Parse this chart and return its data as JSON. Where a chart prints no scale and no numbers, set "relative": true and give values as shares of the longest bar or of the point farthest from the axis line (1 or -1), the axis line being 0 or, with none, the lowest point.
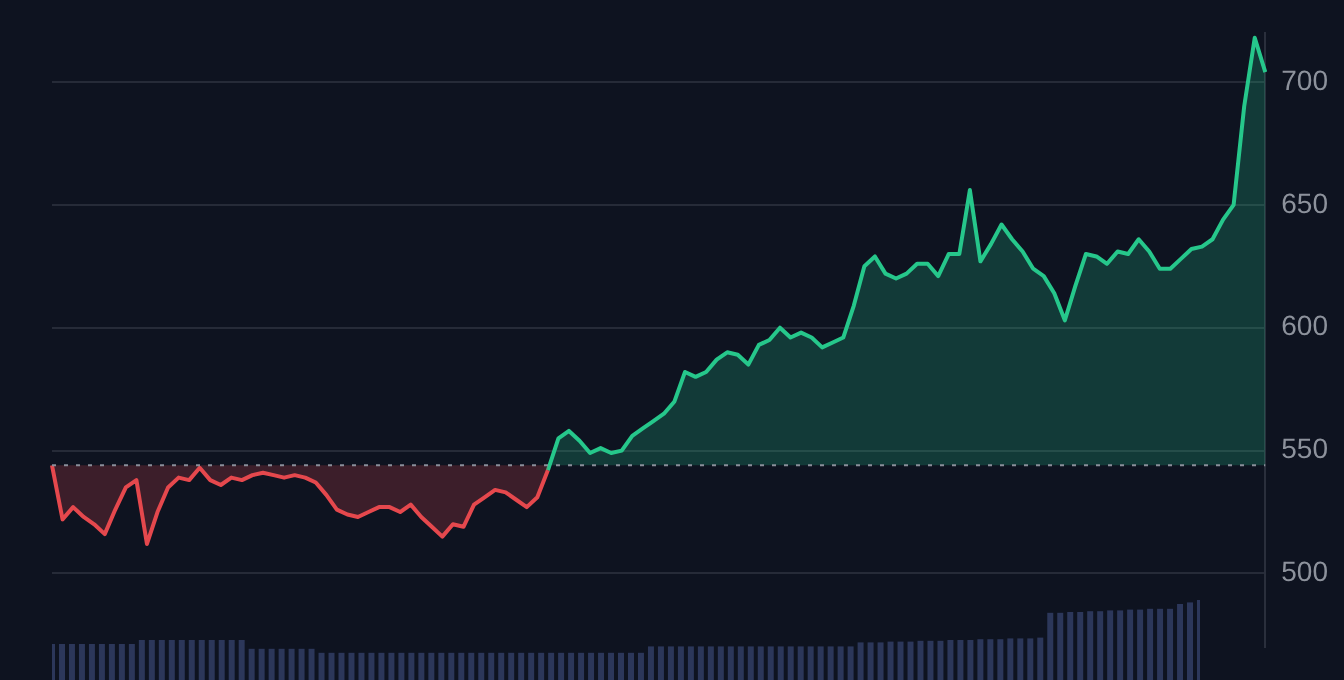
{
  "chart_data": [
    {
      "type": "area",
      "categories": [
        null,
        null,
        null,
        null,
        null,
        null,
        null,
        null,
        null,
        null,
        null,
        null,
        null,
        null,
        null,
        null,
        null,
        null,
        null,
        null,
        null,
        null,
        null,
        null,
        null,
        null,
        null,
        null,
        null,
        null,
        null,
        null,
        null,
        null,
        null,
        null,
        null,
        null,
        null,
        null,
        null,
        null,
        null,
        null,
        null,
        null,
        null,
        null,
        null,
        null,
        null,
        null,
        null,
        null,
        null,
        null,
        null,
        null,
        null,
        null,
        null,
        null,
        null,
        null,
        null,
        null,
        null,
        null,
        null,
        null,
        null,
        null,
        null,
        null,
        null,
        null,
        null,
        null,
        null,
        null,
        null,
        null,
        null,
        null,
        null,
        null,
        null,
        null,
        null,
        null,
        null,
        null,
        null,
        null,
        null,
        null,
        null,
        null,
        null,
        null,
        null,
        null,
        null,
        null,
        null,
        null,
        null,
        null,
        null,
        null,
        null,
        null,
        null,
        null,
        null,
        null
      ],
      "series": [
        {
          "color": "#e5484d",
          "values": [
            544,
            522,
            527,
            523,
            520,
            516,
            526,
            535,
            538,
            512,
            525,
            535,
            539,
            538,
            543,
            538,
            536,
            539,
            538,
            540,
            541,
            540,
            539,
            540,
            539,
            537,
            532,
            526,
            524,
            523,
            525,
            527,
            527,
            525,
            528,
            523,
            519,
            515,
            520,
            519,
            528,
            531,
            534,
            533,
            530,
            527,
            531,
            542,
            null,
            null,
            null,
            null,
            null,
            null,
            null,
            null,
            null,
            null,
            null,
            null,
            null,
            null,
            null,
            null,
            null,
            null,
            null,
            null,
            null,
            null,
            null,
            null,
            null,
            null,
            null,
            null,
            null,
            null,
            null,
            null,
            null,
            null,
            null,
            null,
            null,
            null,
            null,
            null,
            null,
            null,
            null,
            null,
            null,
            null,
            null,
            null,
            null,
            null,
            null,
            null,
            null,
            null,
            null,
            null,
            null,
            null,
            null,
            null,
            null,
            null,
            null,
            null,
            null,
            null,
            null,
            null
          ]
        },
        {
          "color": "#26c78b",
          "values": [
            null,
            null,
            null,
            null,
            null,
            null,
            null,
            null,
            null,
            null,
            null,
            null,
            null,
            null,
            null,
            null,
            null,
            null,
            null,
            null,
            null,
            null,
            null,
            null,
            null,
            null,
            null,
            null,
            null,
            null,
            null,
            null,
            null,
            null,
            null,
            null,
            null,
            null,
            null,
            null,
            null,
            null,
            null,
            null,
            null,
            null,
            null,
            542,
            555,
            558,
            554,
            549,
            551,
            549,
            550,
            556,
            559,
            562,
            565,
            570,
            582,
            580,
            582,
            587,
            590,
            589,
            585,
            593,
            595,
            600,
            596,
            598,
            596,
            592,
            594,
            596,
            609,
            625,
            629,
            622,
            620,
            622,
            626,
            626,
            621,
            630,
            630,
            656,
            627,
            634,
            642,
            636,
            631,
            624,
            621,
            614,
            603,
            617,
            630,
            629,
            626,
            631,
            630,
            636,
            631,
            624,
            624,
            628,
            632,
            633,
            636,
            644,
            650,
            690,
            718,
            704
          ]
        }
      ],
      "ylim": [
        470,
        720
      ],
      "yticks": [
        500,
        550,
        600,
        650,
        700
      ],
      "grid": "y",
      "tick_labels": "y",
      "marker": "none",
      "ref_lines": [
        {
          "axis": "y",
          "value": 544,
          "color": "#8a8f9a",
          "line_style": "dotted"
        }
      ]
    },
    {
      "type": "bar",
      "relative": true,
      "tick_labels": false,
      "color": "#2c375a",
      "categories": [
        null,
        null,
        null,
        null,
        null,
        null,
        null,
        null,
        null,
        null,
        null,
        null,
        null,
        null,
        null,
        null,
        null,
        null,
        null,
        null,
        null,
        null,
        null,
        null,
        null,
        null,
        null,
        null,
        null,
        null,
        null,
        null,
        null,
        null,
        null,
        null,
        null,
        null,
        null,
        null,
        null,
        null,
        null,
        null,
        null,
        null,
        null,
        null,
        null,
        null,
        null,
        null,
        null,
        null,
        null,
        null,
        null,
        null,
        null,
        null,
        null,
        null,
        null,
        null,
        null,
        null,
        null,
        null,
        null,
        null,
        null,
        null,
        null,
        null,
        null,
        null,
        null,
        null,
        null,
        null,
        null,
        null,
        null,
        null,
        null,
        null,
        null,
        null,
        null,
        null,
        null,
        null,
        null,
        null,
        null,
        null,
        null,
        null,
        null,
        null,
        null,
        null,
        null,
        null,
        null,
        null,
        null,
        null,
        null,
        null,
        null,
        null,
        null,
        null,
        null,
        null
      ],
      "values": [
        0.45,
        0.45,
        0.45,
        0.45,
        0.45,
        0.45,
        0.45,
        0.45,
        0.45,
        0.5,
        0.5,
        0.5,
        0.5,
        0.5,
        0.5,
        0.5,
        0.5,
        0.5,
        0.5,
        0.5,
        0.39,
        0.39,
        0.39,
        0.39,
        0.39,
        0.39,
        0.39,
        0.34,
        0.34,
        0.34,
        0.34,
        0.34,
        0.34,
        0.34,
        0.34,
        0.34,
        0.34,
        0.34,
        0.34,
        0.34,
        0.34,
        0.34,
        0.34,
        0.34,
        0.34,
        0.34,
        0.34,
        0.34,
        0.34,
        0.34,
        0.34,
        0.34,
        0.34,
        0.34,
        0.34,
        0.34,
        0.34,
        0.34,
        0.34,
        0.34,
        0.42,
        0.42,
        0.42,
        0.42,
        0.42,
        0.42,
        0.42,
        0.42,
        0.42,
        0.42,
        0.42,
        0.42,
        0.42,
        0.42,
        0.42,
        0.42,
        0.42,
        0.42,
        0.42,
        0.42,
        0.42,
        0.47,
        0.47,
        0.47,
        0.48,
        0.48,
        0.48,
        0.49,
        0.49,
        0.49,
        0.5,
        0.5,
        0.5,
        0.51,
        0.51,
        0.51,
        0.52,
        0.52,
        0.52,
        0.53,
        0.84,
        0.84,
        0.85,
        0.85,
        0.86,
        0.86,
        0.87,
        0.87,
        0.88,
        0.88,
        0.89,
        0.89,
        0.89,
        0.95,
        0.97,
        1
      ]
    }
  ]
}
